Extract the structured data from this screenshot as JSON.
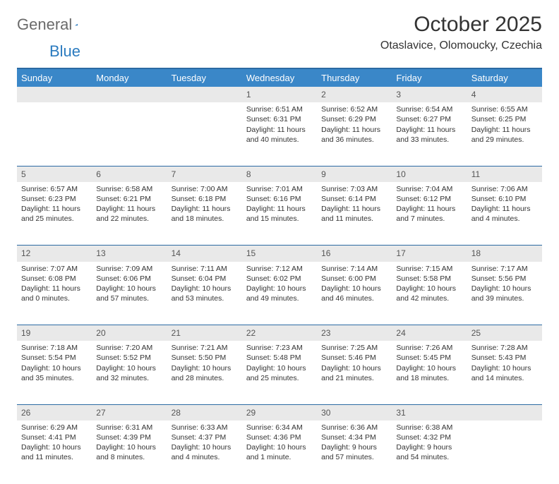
{
  "brand": {
    "word1": "General",
    "word2": "Blue"
  },
  "title": "October 2025",
  "location": "Otaslavice, Olomoucky, Czechia",
  "colors": {
    "header_bg": "#3a87c8",
    "header_border": "#2b6aa3",
    "daynum_bg": "#e9e9e9",
    "text": "#333333",
    "logo_gray": "#6a6a6a",
    "logo_blue": "#2b7bbf"
  },
  "day_headers": [
    "Sunday",
    "Monday",
    "Tuesday",
    "Wednesday",
    "Thursday",
    "Friday",
    "Saturday"
  ],
  "weeks": [
    [
      null,
      null,
      null,
      {
        "n": "1",
        "sr": "6:51 AM",
        "ss": "6:31 PM",
        "dl": "11 hours and 40 minutes."
      },
      {
        "n": "2",
        "sr": "6:52 AM",
        "ss": "6:29 PM",
        "dl": "11 hours and 36 minutes."
      },
      {
        "n": "3",
        "sr": "6:54 AM",
        "ss": "6:27 PM",
        "dl": "11 hours and 33 minutes."
      },
      {
        "n": "4",
        "sr": "6:55 AM",
        "ss": "6:25 PM",
        "dl": "11 hours and 29 minutes."
      }
    ],
    [
      {
        "n": "5",
        "sr": "6:57 AM",
        "ss": "6:23 PM",
        "dl": "11 hours and 25 minutes."
      },
      {
        "n": "6",
        "sr": "6:58 AM",
        "ss": "6:21 PM",
        "dl": "11 hours and 22 minutes."
      },
      {
        "n": "7",
        "sr": "7:00 AM",
        "ss": "6:18 PM",
        "dl": "11 hours and 18 minutes."
      },
      {
        "n": "8",
        "sr": "7:01 AM",
        "ss": "6:16 PM",
        "dl": "11 hours and 15 minutes."
      },
      {
        "n": "9",
        "sr": "7:03 AM",
        "ss": "6:14 PM",
        "dl": "11 hours and 11 minutes."
      },
      {
        "n": "10",
        "sr": "7:04 AM",
        "ss": "6:12 PM",
        "dl": "11 hours and 7 minutes."
      },
      {
        "n": "11",
        "sr": "7:06 AM",
        "ss": "6:10 PM",
        "dl": "11 hours and 4 minutes."
      }
    ],
    [
      {
        "n": "12",
        "sr": "7:07 AM",
        "ss": "6:08 PM",
        "dl": "11 hours and 0 minutes."
      },
      {
        "n": "13",
        "sr": "7:09 AM",
        "ss": "6:06 PM",
        "dl": "10 hours and 57 minutes."
      },
      {
        "n": "14",
        "sr": "7:11 AM",
        "ss": "6:04 PM",
        "dl": "10 hours and 53 minutes."
      },
      {
        "n": "15",
        "sr": "7:12 AM",
        "ss": "6:02 PM",
        "dl": "10 hours and 49 minutes."
      },
      {
        "n": "16",
        "sr": "7:14 AM",
        "ss": "6:00 PM",
        "dl": "10 hours and 46 minutes."
      },
      {
        "n": "17",
        "sr": "7:15 AM",
        "ss": "5:58 PM",
        "dl": "10 hours and 42 minutes."
      },
      {
        "n": "18",
        "sr": "7:17 AM",
        "ss": "5:56 PM",
        "dl": "10 hours and 39 minutes."
      }
    ],
    [
      {
        "n": "19",
        "sr": "7:18 AM",
        "ss": "5:54 PM",
        "dl": "10 hours and 35 minutes."
      },
      {
        "n": "20",
        "sr": "7:20 AM",
        "ss": "5:52 PM",
        "dl": "10 hours and 32 minutes."
      },
      {
        "n": "21",
        "sr": "7:21 AM",
        "ss": "5:50 PM",
        "dl": "10 hours and 28 minutes."
      },
      {
        "n": "22",
        "sr": "7:23 AM",
        "ss": "5:48 PM",
        "dl": "10 hours and 25 minutes."
      },
      {
        "n": "23",
        "sr": "7:25 AM",
        "ss": "5:46 PM",
        "dl": "10 hours and 21 minutes."
      },
      {
        "n": "24",
        "sr": "7:26 AM",
        "ss": "5:45 PM",
        "dl": "10 hours and 18 minutes."
      },
      {
        "n": "25",
        "sr": "7:28 AM",
        "ss": "5:43 PM",
        "dl": "10 hours and 14 minutes."
      }
    ],
    [
      {
        "n": "26",
        "sr": "6:29 AM",
        "ss": "4:41 PM",
        "dl": "10 hours and 11 minutes."
      },
      {
        "n": "27",
        "sr": "6:31 AM",
        "ss": "4:39 PM",
        "dl": "10 hours and 8 minutes."
      },
      {
        "n": "28",
        "sr": "6:33 AM",
        "ss": "4:37 PM",
        "dl": "10 hours and 4 minutes."
      },
      {
        "n": "29",
        "sr": "6:34 AM",
        "ss": "4:36 PM",
        "dl": "10 hours and 1 minute."
      },
      {
        "n": "30",
        "sr": "6:36 AM",
        "ss": "4:34 PM",
        "dl": "9 hours and 57 minutes."
      },
      {
        "n": "31",
        "sr": "6:38 AM",
        "ss": "4:32 PM",
        "dl": "9 hours and 54 minutes."
      },
      null
    ]
  ],
  "labels": {
    "sunrise": "Sunrise:",
    "sunset": "Sunset:",
    "daylight": "Daylight:"
  }
}
